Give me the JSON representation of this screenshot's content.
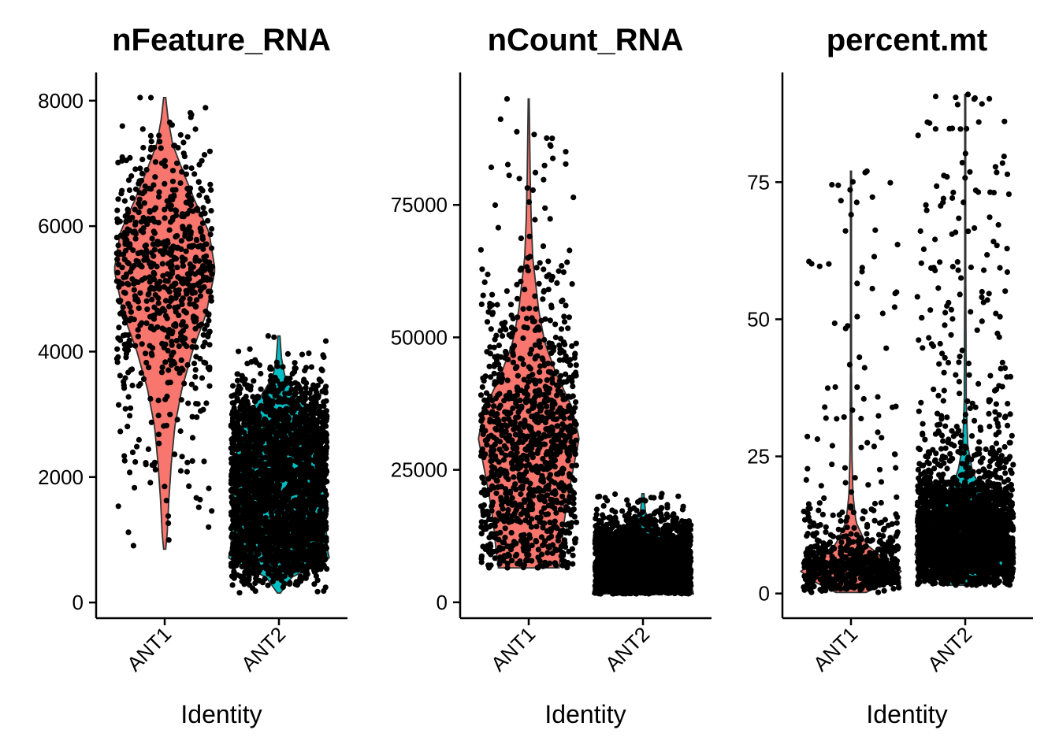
{
  "chart_data": [
    {
      "type": "violin",
      "title": "nFeature_RNA",
      "xlabel": "Identity",
      "ylabel": "",
      "categories": [
        "ANT1",
        "ANT2"
      ],
      "ylim": [
        -250,
        8450
      ],
      "yticks": [
        0,
        2000,
        4000,
        6000,
        8000
      ],
      "ytick_labels": [
        "0",
        "2000",
        "4000",
        "6000",
        "8000"
      ],
      "series": [
        {
          "category": "ANT1",
          "color": "#F8766D",
          "min": 850,
          "max": 8050,
          "median": 5150,
          "points": 700,
          "shape": [
            [
              850,
              0.02
            ],
            [
              1100,
              0.05
            ],
            [
              1600,
              0.08
            ],
            [
              2200,
              0.13
            ],
            [
              2800,
              0.2
            ],
            [
              3400,
              0.34
            ],
            [
              4000,
              0.55
            ],
            [
              4600,
              0.82
            ],
            [
              5300,
              1.0
            ],
            [
              5900,
              0.88
            ],
            [
              6400,
              0.6
            ],
            [
              6900,
              0.35
            ],
            [
              7300,
              0.16
            ],
            [
              7700,
              0.07
            ],
            [
              8050,
              0.02
            ]
          ]
        },
        {
          "category": "ANT2",
          "color": "#00BFC4",
          "min": 150,
          "max": 4250,
          "median": 1500,
          "points": 2600,
          "shape": [
            [
              150,
              0.03
            ],
            [
              400,
              0.25
            ],
            [
              700,
              1.0
            ],
            [
              900,
              0.95
            ],
            [
              1400,
              0.93
            ],
            [
              2000,
              0.9
            ],
            [
              2500,
              0.82
            ],
            [
              3000,
              0.62
            ],
            [
              3300,
              0.35
            ],
            [
              3600,
              0.12
            ],
            [
              3900,
              0.05
            ],
            [
              4250,
              0.02
            ]
          ]
        }
      ]
    },
    {
      "type": "violin",
      "title": "nCount_RNA",
      "xlabel": "Identity",
      "ylabel": "",
      "categories": [
        "ANT1",
        "ANT2"
      ],
      "ylim": [
        -3000,
        100000
      ],
      "yticks": [
        0,
        25000,
        50000,
        75000
      ],
      "ytick_labels": [
        "0",
        "25000",
        "50000",
        "75000"
      ],
      "series": [
        {
          "category": "ANT1",
          "color": "#F8766D",
          "min": 6500,
          "max": 95000,
          "median": 30000,
          "points": 1100,
          "shape": [
            [
              6500,
              0.6
            ],
            [
              10000,
              0.65
            ],
            [
              15000,
              0.7
            ],
            [
              20000,
              0.78
            ],
            [
              25000,
              0.88
            ],
            [
              31000,
              1.0
            ],
            [
              37000,
              0.85
            ],
            [
              43000,
              0.55
            ],
            [
              49000,
              0.32
            ],
            [
              55000,
              0.2
            ],
            [
              60000,
              0.14
            ],
            [
              65000,
              0.08
            ],
            [
              72000,
              0.05
            ],
            [
              80000,
              0.03
            ],
            [
              95000,
              0.01
            ]
          ]
        },
        {
          "category": "ANT2",
          "color": "#00BFC4",
          "min": 1600,
          "max": 20500,
          "median": 5000,
          "points": 2600,
          "shape": [
            [
              1600,
              1.0
            ],
            [
              3000,
              0.97
            ],
            [
              6000,
              0.95
            ],
            [
              9000,
              0.93
            ],
            [
              11500,
              0.85
            ],
            [
              13000,
              0.4
            ],
            [
              15000,
              0.15
            ],
            [
              17000,
              0.05
            ],
            [
              20500,
              0.02
            ]
          ]
        }
      ]
    },
    {
      "type": "violin",
      "title": "percent.mt",
      "xlabel": "Identity",
      "ylabel": "",
      "categories": [
        "ANT1",
        "ANT2"
      ],
      "ylim": [
        -4.5,
        95
      ],
      "yticks": [
        0,
        25,
        50,
        75
      ],
      "ytick_labels": [
        "0",
        "25",
        "50",
        "75"
      ],
      "series": [
        {
          "category": "ANT1",
          "color": "#F8766D",
          "min": 0.2,
          "max": 77,
          "median": 4.5,
          "points": 700,
          "shape": [
            [
              0.2,
              0.3
            ],
            [
              2,
              0.7
            ],
            [
              4,
              1.0
            ],
            [
              6,
              0.7
            ],
            [
              9,
              0.3
            ],
            [
              13,
              0.1
            ],
            [
              18,
              0.04
            ],
            [
              25,
              0.02
            ],
            [
              40,
              0.01
            ],
            [
              77,
              0.01
            ]
          ]
        },
        {
          "category": "ANT2",
          "color": "#00BFC4",
          "min": 1.5,
          "max": 91,
          "median": 10,
          "points": 2600,
          "shape": [
            [
              1.5,
              0.3
            ],
            [
              4,
              0.55
            ],
            [
              7,
              1.0
            ],
            [
              10,
              0.9
            ],
            [
              14,
              0.7
            ],
            [
              18,
              0.4
            ],
            [
              22,
              0.15
            ],
            [
              27,
              0.05
            ],
            [
              35,
              0.02
            ],
            [
              60,
              0.01
            ],
            [
              91,
              0.01
            ]
          ]
        }
      ]
    }
  ]
}
